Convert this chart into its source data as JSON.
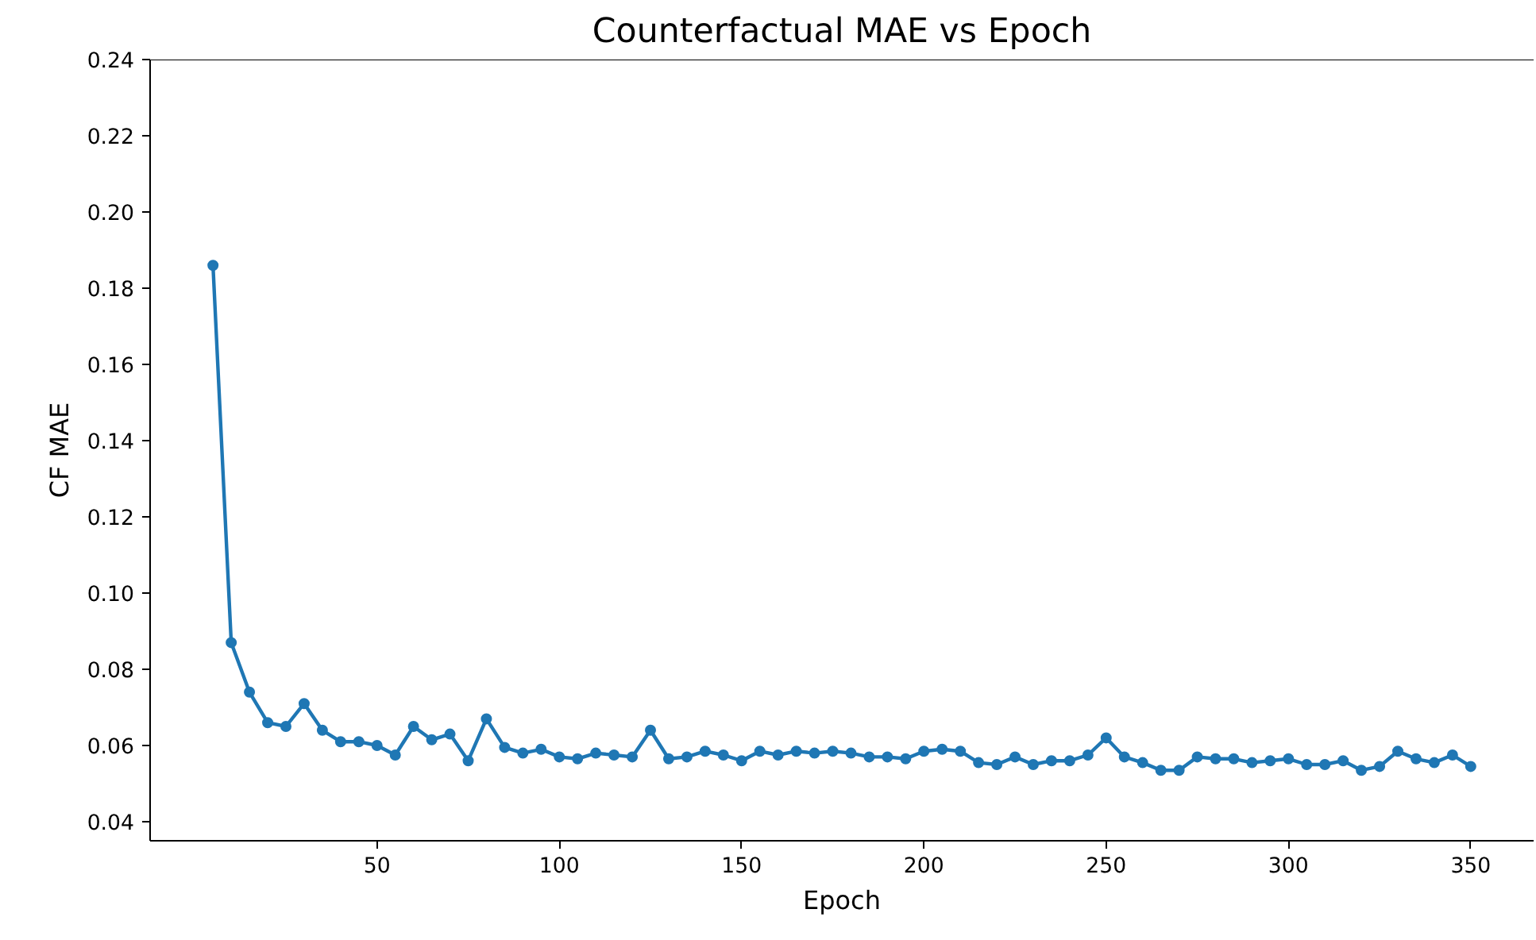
{
  "chart_data": {
    "type": "line",
    "title": "Counterfactual MAE vs Epoch",
    "xlabel": "Epoch",
    "ylabel": "CF MAE",
    "x": [
      5,
      10,
      15,
      20,
      25,
      30,
      35,
      40,
      45,
      50,
      55,
      60,
      65,
      70,
      75,
      80,
      85,
      90,
      95,
      100,
      105,
      110,
      115,
      120,
      125,
      130,
      135,
      140,
      145,
      150,
      155,
      160,
      165,
      170,
      175,
      180,
      185,
      190,
      195,
      200,
      205,
      210,
      215,
      220,
      225,
      230,
      235,
      240,
      245,
      250,
      255,
      260,
      265,
      270,
      275,
      280,
      285,
      290,
      295,
      300,
      305,
      310,
      315,
      320,
      325,
      330,
      335,
      340,
      345,
      350
    ],
    "series": [
      {
        "color": "#1f77b4",
        "values": [
          0.186,
          0.087,
          0.074,
          0.066,
          0.065,
          0.071,
          0.064,
          0.061,
          0.061,
          0.06,
          0.0575,
          0.065,
          0.0615,
          0.063,
          0.056,
          0.067,
          0.0595,
          0.058,
          0.059,
          0.057,
          0.0565,
          0.058,
          0.0575,
          0.057,
          0.064,
          0.0565,
          0.057,
          0.0585,
          0.0575,
          0.056,
          0.0585,
          0.0575,
          0.0585,
          0.058,
          0.0585,
          0.058,
          0.057,
          0.057,
          0.0565,
          0.0585,
          0.059,
          0.0585,
          0.0555,
          0.055,
          0.057,
          0.055,
          0.056,
          0.056,
          0.0575,
          0.062,
          0.057,
          0.0555,
          0.0535,
          0.0535,
          0.057,
          0.0565,
          0.0565,
          0.0555,
          0.056,
          0.0565,
          0.055,
          0.055,
          0.056,
          0.0535,
          0.0545,
          0.0585,
          0.0565,
          0.0555,
          0.0575,
          0.0545
        ]
      }
    ],
    "xlim": [
      -12.25,
      367.25
    ],
    "ylim": [
      0.035,
      0.24
    ],
    "xticks": [
      50,
      100,
      150,
      200,
      250,
      300,
      350
    ],
    "yticks": [
      0.04,
      0.06,
      0.08,
      {
        "value": 0.1,
        "label": "0.10"
      },
      0.12,
      0.14,
      0.16,
      0.18,
      {
        "value": 0.2,
        "label": "0.20"
      },
      0.22,
      0.24
    ],
    "marker": "circle",
    "line_style": "solid",
    "grid": false
  }
}
